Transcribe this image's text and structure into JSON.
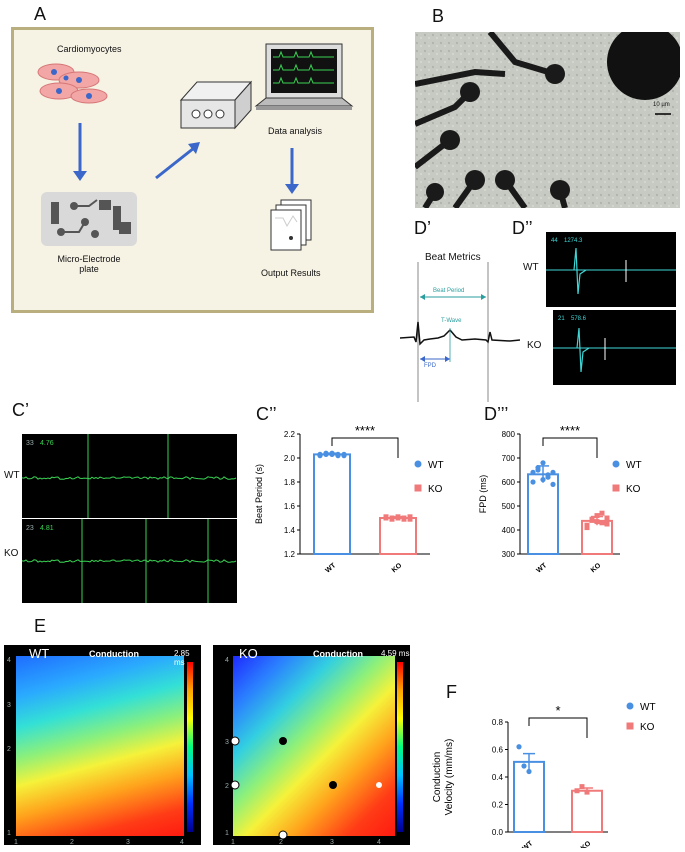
{
  "panels": {
    "A": {
      "letter": "A",
      "cardiomyocytes": "Cardiomyocytes",
      "data_analysis": "Data analysis",
      "mea_plate": "Micro-Electrode plate",
      "output": "Output Results"
    },
    "B": {
      "letter": "B",
      "scale_bar": "10 µm"
    },
    "C1": {
      "letter": "C’",
      "wt_label": "WT",
      "ko_label": "KO",
      "wt_idx": "33",
      "wt_val": "4.76",
      "ko_idx": "23",
      "ko_val": "4.81"
    },
    "C2": {
      "letter": "C’’",
      "sig": "****"
    },
    "D1": {
      "letter": "D’",
      "title": "Beat Metrics",
      "beat_period": "Beat Period",
      "t_wave": "T-Wave",
      "fpd": "FPD"
    },
    "D2": {
      "letter": "D’’",
      "wt_label": "WT",
      "ko_label": "KO",
      "wt_idx": "44",
      "wt_val": "1274.3",
      "ko_idx": "21",
      "ko_val": "578.6"
    },
    "D3": {
      "letter": "D’’’",
      "sig": "****"
    },
    "E": {
      "letter": "E",
      "wt_label": "WT",
      "ko_label": "KO",
      "title": "Conduction",
      "wt_max": "2.85 ms",
      "ko_max": "4.59 ms"
    },
    "F": {
      "letter": "F",
      "sig": "*"
    }
  },
  "legend": {
    "wt": "WT",
    "ko": "KO"
  },
  "colors": {
    "wt": "#4a90e2",
    "ko": "#f07a7a",
    "trace": "#39d353",
    "trace_cyan": "#3fd6d6",
    "frame_bg": "#f6f2e4",
    "frame_border": "#b8ae7e"
  },
  "chart_data": [
    {
      "type": "bar",
      "categories": [
        "WT",
        "KO"
      ],
      "values": [
        2.03,
        1.5
      ],
      "errors": [
        0.01,
        0.01
      ],
      "points": [
        [
          2.02,
          2.03,
          2.04,
          2.03,
          2.02,
          2.03,
          2.04,
          2.03,
          2.02,
          2.03
        ],
        [
          1.5,
          1.49,
          1.51,
          1.5,
          1.49,
          1.51,
          1.5,
          1.5,
          1.49,
          1.51
        ]
      ],
      "ylabel": "Beat Period (s)",
      "ylim": [
        1.2,
        2.2
      ],
      "yticks": [
        "1.2",
        "1.4",
        "1.6",
        "1.8",
        "2.0",
        "2.2"
      ]
    },
    {
      "type": "bar",
      "categories": [
        "WT",
        "KO"
      ],
      "values": [
        632,
        438
      ],
      "errors": [
        35,
        18
      ],
      "points": [
        [
          600,
          650,
          680,
          620,
          590,
          640,
          660,
          610,
          630,
          640
        ],
        [
          420,
          440,
          460,
          430,
          450,
          410,
          445,
          435,
          470,
          425
        ]
      ],
      "ylabel": "FPD (ms)",
      "ylim": [
        300,
        800
      ],
      "yticks": [
        "300",
        "400",
        "500",
        "600",
        "700",
        "800"
      ]
    },
    {
      "type": "bar",
      "categories": [
        "WT",
        "KO"
      ],
      "values": [
        0.51,
        0.3
      ],
      "errors": [
        0.06,
        0.02
      ],
      "points": [
        [
          0.62,
          0.48,
          0.44
        ],
        [
          0.3,
          0.33,
          0.29
        ]
      ],
      "ylabel": "Conduction Velocity (mm/ms)",
      "ylim": [
        0,
        0.8
      ],
      "yticks": [
        "0.0",
        "0.2",
        "0.4",
        "0.6",
        "0.8"
      ]
    }
  ]
}
